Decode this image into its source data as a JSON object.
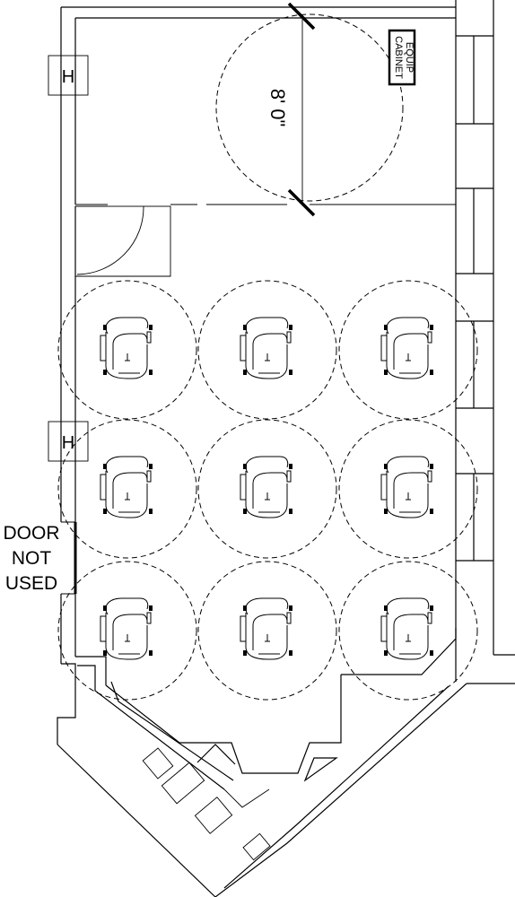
{
  "plan": {
    "clearance_label": "8' 0\"",
    "cabinet_label_line1": "EQUIP",
    "cabinet_label_line2": "CABINET",
    "door_note_line1": "DOOR",
    "door_note_line2": "NOT",
    "door_note_line3": "USED",
    "column_symbol": "H",
    "chair_count": 9
  }
}
